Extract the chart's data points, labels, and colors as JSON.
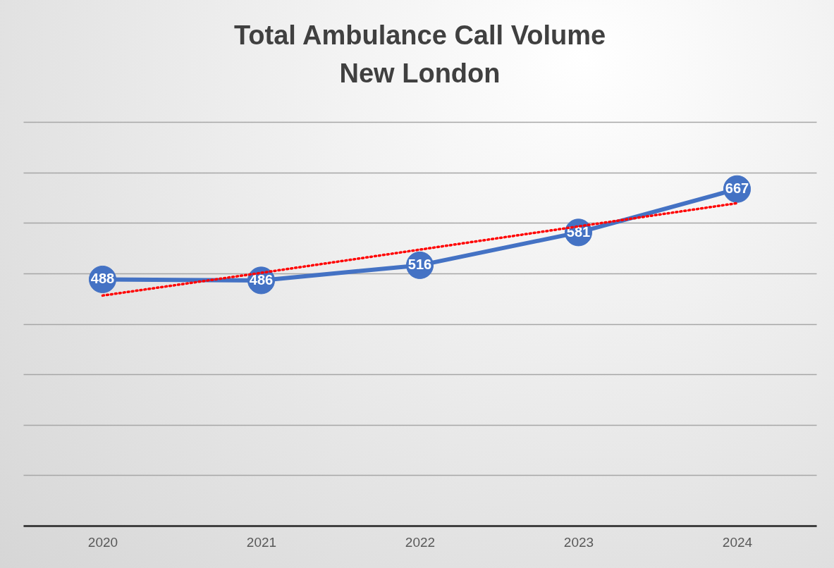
{
  "chart_data": {
    "type": "line",
    "title": "Total Ambulance Call Volume",
    "subtitle": "New London",
    "categories": [
      "2020",
      "2021",
      "2022",
      "2023",
      "2024"
    ],
    "series": [
      {
        "color": "#4472c4",
        "values": [
          488,
          486,
          516,
          581,
          667
        ],
        "value_labels": [
          "488",
          "486",
          "516",
          "581",
          "667"
        ]
      },
      {
        "color": "#ff0000",
        "values": [
          456,
          501,
          547,
          593,
          639
        ],
        "marker": "none",
        "line_style": "dotted"
      }
    ],
    "ylim": [
      0,
      800
    ],
    "yticks": [
      {
        "value": 0,
        "label": null
      },
      {
        "value": 100,
        "label": null
      },
      {
        "value": 200,
        "label": null
      },
      {
        "value": 300,
        "label": null
      },
      {
        "value": 400,
        "label": null
      },
      {
        "value": 500,
        "label": null
      },
      {
        "value": 600,
        "label": null
      },
      {
        "value": 700,
        "label": null
      },
      {
        "value": 800,
        "label": null
      }
    ],
    "tick_labels": "x",
    "grid": "y",
    "marker": "circle",
    "line_style": "solid"
  }
}
